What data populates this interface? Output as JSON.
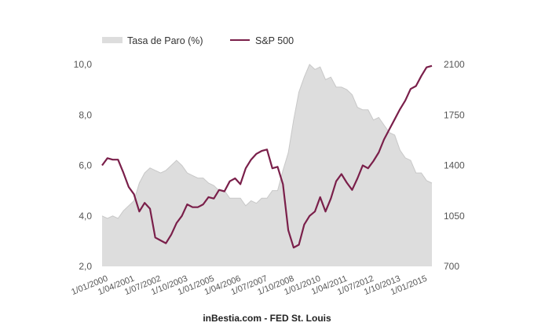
{
  "chart_data": {
    "type": "area+line",
    "title": "",
    "source_label": "inBestia.com - FED St. Louis",
    "colors": {
      "unemployment_fill": "#dddddd",
      "unemployment_stroke": "#c8c8c8",
      "sp500": "#7a1f4a"
    },
    "legend": {
      "placement": "top-left",
      "entries": [
        {
          "label": "Tasa de Paro (%)",
          "kind": "area"
        },
        {
          "label": "S&P 500",
          "kind": "line"
        }
      ]
    },
    "x_axis": {
      "start": "2000-01",
      "end": "2015-07",
      "tick_labels": [
        "1/01/2000",
        "1/04/2001",
        "1/07/2002",
        "1/10/2003",
        "1/01/2005",
        "1/04/2006",
        "1/07/2007",
        "1/10/2008",
        "1/01/2010",
        "1/04/2011",
        "1/07/2012",
        "1/10/2013",
        "1/01/2015"
      ],
      "tick_dates": [
        "2000-01",
        "2001-04",
        "2002-07",
        "2003-10",
        "2005-01",
        "2006-04",
        "2007-07",
        "2008-10",
        "2010-01",
        "2011-04",
        "2012-07",
        "2013-10",
        "2015-01"
      ]
    },
    "y_left": {
      "label": "Tasa de Paro (%)",
      "range": [
        2.0,
        10.0
      ],
      "tick_labels": [
        "2,0",
        "4,0",
        "6,0",
        "8,0",
        "10,0"
      ],
      "ticks": [
        2,
        4,
        6,
        8,
        10
      ]
    },
    "y_right": {
      "label": "S&P 500",
      "range": [
        700,
        2100
      ],
      "tick_labels": [
        "700",
        "1050",
        "1400",
        "1750",
        "2100"
      ],
      "ticks": [
        700,
        1050,
        1400,
        1750,
        2100
      ]
    },
    "series": [
      {
        "name": "Tasa de Paro (%)",
        "axis": "left",
        "type": "area",
        "x": [
          "2000-01",
          "2000-04",
          "2000-07",
          "2000-10",
          "2001-01",
          "2001-04",
          "2001-07",
          "2001-10",
          "2002-01",
          "2002-04",
          "2002-07",
          "2002-10",
          "2003-01",
          "2003-04",
          "2003-07",
          "2003-10",
          "2004-01",
          "2004-04",
          "2004-07",
          "2004-10",
          "2005-01",
          "2005-04",
          "2005-07",
          "2005-10",
          "2006-01",
          "2006-04",
          "2006-07",
          "2006-10",
          "2007-01",
          "2007-04",
          "2007-07",
          "2007-10",
          "2008-01",
          "2008-04",
          "2008-07",
          "2008-10",
          "2009-01",
          "2009-04",
          "2009-07",
          "2009-10",
          "2010-01",
          "2010-04",
          "2010-07",
          "2010-10",
          "2011-01",
          "2011-04",
          "2011-07",
          "2011-10",
          "2012-01",
          "2012-04",
          "2012-07",
          "2012-10",
          "2013-01",
          "2013-04",
          "2013-07",
          "2013-10",
          "2014-01",
          "2014-04",
          "2014-07",
          "2014-10",
          "2015-01",
          "2015-04",
          "2015-07"
        ],
        "values": [
          4.0,
          3.9,
          4.0,
          3.9,
          4.2,
          4.4,
          4.6,
          5.3,
          5.7,
          5.9,
          5.8,
          5.7,
          5.8,
          6.0,
          6.2,
          6.0,
          5.7,
          5.6,
          5.5,
          5.5,
          5.3,
          5.2,
          5.0,
          5.0,
          4.7,
          4.7,
          4.7,
          4.4,
          4.6,
          4.5,
          4.7,
          4.7,
          5.0,
          5.0,
          5.8,
          6.5,
          7.8,
          8.9,
          9.5,
          10.0,
          9.8,
          9.9,
          9.4,
          9.5,
          9.1,
          9.1,
          9.0,
          8.8,
          8.3,
          8.2,
          8.2,
          7.8,
          7.9,
          7.6,
          7.3,
          7.2,
          6.6,
          6.3,
          6.2,
          5.7,
          5.7,
          5.4,
          5.3
        ]
      },
      {
        "name": "S&P 500",
        "axis": "right",
        "type": "line",
        "x": [
          "2000-01",
          "2000-04",
          "2000-07",
          "2000-10",
          "2001-01",
          "2001-04",
          "2001-07",
          "2001-10",
          "2002-01",
          "2002-04",
          "2002-07",
          "2002-10",
          "2003-01",
          "2003-04",
          "2003-07",
          "2003-10",
          "2004-01",
          "2004-04",
          "2004-07",
          "2004-10",
          "2005-01",
          "2005-04",
          "2005-07",
          "2005-10",
          "2006-01",
          "2006-04",
          "2006-07",
          "2006-10",
          "2007-01",
          "2007-04",
          "2007-07",
          "2007-10",
          "2008-01",
          "2008-04",
          "2008-07",
          "2008-10",
          "2009-01",
          "2009-04",
          "2009-07",
          "2009-10",
          "2010-01",
          "2010-04",
          "2010-07",
          "2010-10",
          "2011-01",
          "2011-04",
          "2011-07",
          "2011-10",
          "2012-01",
          "2012-04",
          "2012-07",
          "2012-10",
          "2013-01",
          "2013-04",
          "2013-07",
          "2013-10",
          "2014-01",
          "2014-04",
          "2014-07",
          "2014-10",
          "2015-01",
          "2015-04",
          "2015-07"
        ],
        "values": [
          1400,
          1450,
          1440,
          1440,
          1350,
          1250,
          1200,
          1080,
          1140,
          1100,
          900,
          880,
          860,
          920,
          1000,
          1050,
          1130,
          1110,
          1110,
          1130,
          1180,
          1170,
          1230,
          1220,
          1290,
          1310,
          1270,
          1380,
          1440,
          1480,
          1500,
          1510,
          1380,
          1390,
          1270,
          950,
          830,
          850,
          990,
          1050,
          1080,
          1180,
          1080,
          1170,
          1290,
          1340,
          1280,
          1230,
          1310,
          1400,
          1380,
          1430,
          1490,
          1580,
          1650,
          1720,
          1790,
          1850,
          1930,
          1950,
          2020,
          2080,
          2090
        ]
      }
    ]
  }
}
